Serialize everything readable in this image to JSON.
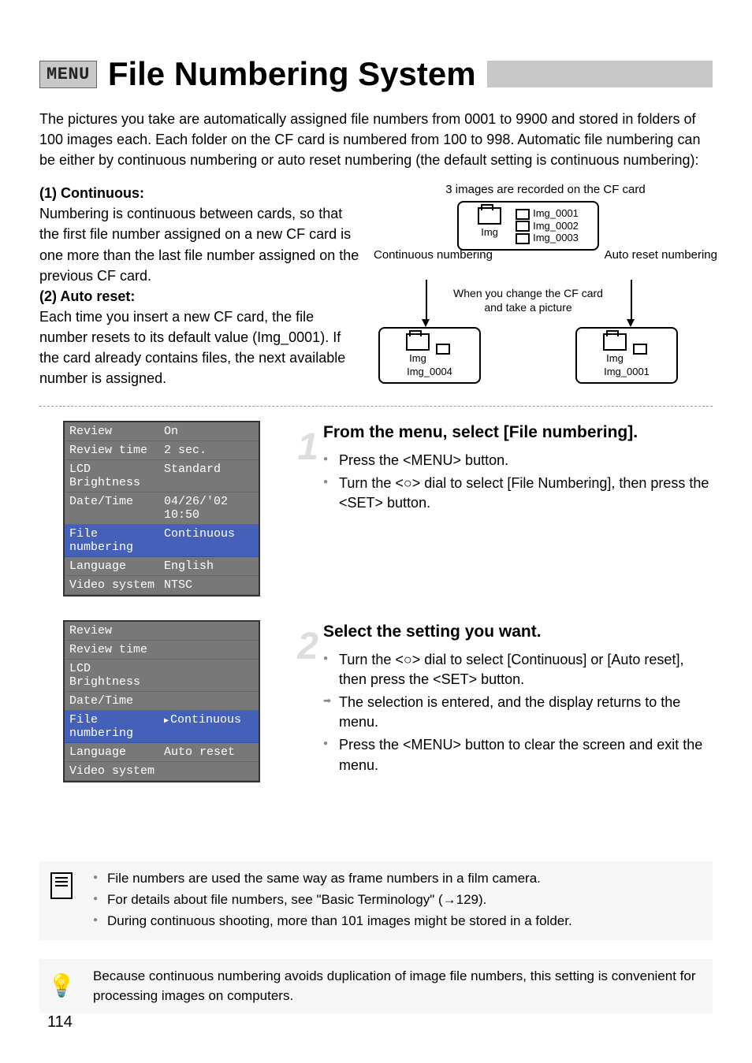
{
  "title": {
    "badge": "MENU",
    "text": "File Numbering System"
  },
  "intro": "The pictures you take are automatically assigned file numbers from 0001 to 9900 and stored in folders of 100 images each. Each folder on the CF card is numbered from 100 to 998. Automatic file numbering can be either by continuous numbering or auto reset numbering (the default setting is continuous numbering):",
  "modes": {
    "m1_head": "(1) Continuous:",
    "m1_body": "Numbering is continuous between cards, so that the first file number assigned on a new CF card is one more than the last file number assigned on the previous CF card.",
    "m2_head": "(2) Auto reset:",
    "m2_body": "Each time you insert a new CF card, the file number resets to its default value (Img_0001). If the card already contains files, the next available number is assigned."
  },
  "diagram": {
    "caption": "3 images are recorded on the CF card",
    "folder_label": "Img",
    "files_top": [
      "Img_0001",
      "Img_0002",
      "Img_0003"
    ],
    "left_label": "Continuous numbering",
    "right_label": "Auto reset numbering",
    "change_label": "When you change the CF card and take a picture",
    "left_result": "Img_0004",
    "right_result": "Img_0001"
  },
  "menu1": {
    "rows": [
      {
        "label": "Review",
        "value": "On",
        "hl": false
      },
      {
        "label": "Review time",
        "value": "2 sec.",
        "hl": false
      },
      {
        "label": "LCD Brightness",
        "value": "Standard",
        "hl": false
      },
      {
        "label": "Date/Time",
        "value": "04/26/'02 10:50",
        "hl": false
      },
      {
        "label": "File numbering",
        "value": "Continuous",
        "hl": true
      },
      {
        "label": "Language",
        "value": "English",
        "hl": false
      },
      {
        "label": "Video system",
        "value": "NTSC",
        "hl": false
      }
    ]
  },
  "menu2": {
    "rows": [
      {
        "label": "Review",
        "value": "",
        "hl": false
      },
      {
        "label": "Review time",
        "value": "",
        "hl": false
      },
      {
        "label": "LCD Brightness",
        "value": "",
        "hl": false
      },
      {
        "label": "Date/Time",
        "value": "",
        "hl": false
      },
      {
        "label": "File numbering",
        "value": "Continuous",
        "hl": true,
        "sub": true
      },
      {
        "label": "Language",
        "value": "Auto reset",
        "hl": false
      },
      {
        "label": "Video system",
        "value": "",
        "hl": false
      }
    ]
  },
  "step1": {
    "num": "1",
    "heading": "From the menu, select [File numbering].",
    "items": [
      "Press the <MENU> button.",
      "Turn the <○> dial to select [File Numbering], then press the <SET> button."
    ]
  },
  "step2": {
    "num": "2",
    "heading": "Select the setting you want.",
    "items": [
      {
        "t": "Turn the <○> dial to select [Continuous] or [Auto reset], then press the <SET> button.",
        "k": "bullet"
      },
      {
        "t": "The selection is entered, and the display returns to the menu.",
        "k": "arrow"
      },
      {
        "t": "Press the <MENU> button to clear the screen and exit the menu.",
        "k": "bullet"
      }
    ]
  },
  "notes1": [
    "File numbers are used the same way as frame numbers in a film camera.",
    "For details about file numbers, see \"Basic Terminology\" (→129).",
    "During continuous shooting, more than 101 images might be stored in a folder."
  ],
  "notes2": "Because continuous numbering avoids duplication of image file numbers, this setting is convenient for processing images on computers.",
  "page_number": "114",
  "colors": {
    "menu_bg": "#787878",
    "menu_hl": "#4560b8",
    "badge_bg": "#c8c8c8",
    "step_num": "#dddddd"
  }
}
